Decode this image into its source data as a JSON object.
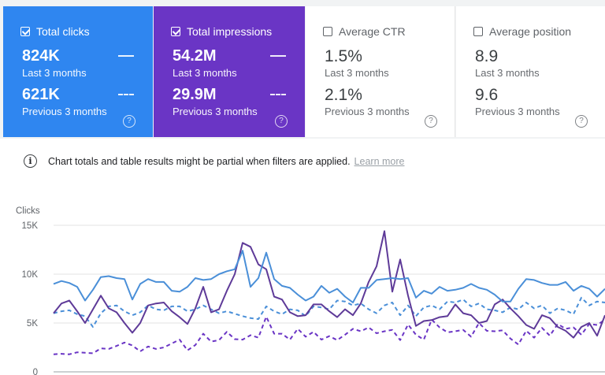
{
  "cards": [
    {
      "label": "Total clicks",
      "checked": true,
      "value": "824K",
      "period": "Last 3 months",
      "prev_value": "621K",
      "prev_period": "Previous 3 months"
    },
    {
      "label": "Total impressions",
      "checked": true,
      "value": "54.2M",
      "period": "Last 3 months",
      "prev_value": "29.9M",
      "prev_period": "Previous 3 months"
    },
    {
      "label": "Average CTR",
      "checked": false,
      "value": "1.5%",
      "period": "Last 3 months",
      "prev_value": "2.1%",
      "prev_period": "Previous 3 months"
    },
    {
      "label": "Average position",
      "checked": false,
      "value": "8.9",
      "period": "Last 3 months",
      "prev_value": "9.6",
      "prev_period": "Previous 3 months"
    }
  ],
  "help_glyph": "?",
  "notice": {
    "icon": "i",
    "text": "Chart totals and table results might be partial when filters are applied.",
    "link": "Learn more"
  },
  "colors": {
    "clicks": "#2f86f0",
    "impressions": "#6a35c5",
    "clicks_line": "#4a8fd8",
    "impressions_line": "#5e3a98"
  },
  "chart_data": {
    "type": "line",
    "ylabel": "Clicks",
    "ylim": [
      0,
      15000
    ],
    "yticks": [
      {
        "v": 0,
        "label": "0"
      },
      {
        "v": 5000,
        "label": "5K"
      },
      {
        "v": 10000,
        "label": "10K"
      },
      {
        "v": 15000,
        "label": "15K"
      }
    ],
    "series": [
      {
        "key": "impressions_prev",
        "style": "dashed",
        "color": "#6a35c5",
        "values": [
          1800,
          1850,
          1800,
          2000,
          1950,
          1900,
          2400,
          2350,
          2650,
          3000,
          2700,
          2100,
          2600,
          2350,
          2500,
          2900,
          3300,
          2200,
          2750,
          3900,
          3100,
          3250,
          4100,
          3350,
          3300,
          3750,
          3500,
          5650,
          3900,
          3900,
          3300,
          4400,
          3600,
          4100,
          3300,
          3650,
          3250,
          3800,
          4400,
          4150,
          4550,
          3950,
          4150,
          4300,
          3250,
          4850,
          3800,
          3300,
          5350,
          4550,
          4050,
          4150,
          4300,
          3600,
          5000,
          4200,
          4150,
          4250,
          3400,
          2800,
          4200,
          3500,
          4500,
          3700,
          4900,
          4400,
          4550,
          3800,
          4900,
          4800,
          5350
        ]
      },
      {
        "key": "clicks_prev",
        "style": "dashed",
        "color": "#4a8fd8",
        "values": [
          6000,
          6200,
          6300,
          5900,
          5700,
          4600,
          6000,
          6700,
          6800,
          6200,
          5800,
          6100,
          6800,
          6400,
          6300,
          6700,
          6700,
          6200,
          6400,
          6800,
          6400,
          6000,
          6200,
          5950,
          5700,
          5500,
          5400,
          6700,
          6200,
          5900,
          6400,
          6300,
          5700,
          6700,
          6600,
          6400,
          7300,
          7200,
          6800,
          7000,
          6400,
          6000,
          6800,
          7100,
          5800,
          6800,
          5700,
          6600,
          6800,
          6400,
          7200,
          7100,
          7400,
          6700,
          7000,
          6400,
          6300,
          6100,
          6600,
          6400,
          7100,
          6500,
          6800,
          6000,
          6500,
          6300,
          5900,
          7600,
          6800,
          7200,
          7100
        ]
      },
      {
        "key": "impressions",
        "style": "solid",
        "color": "#5e3a98",
        "values": [
          6000,
          7000,
          7300,
          6200,
          5000,
          6400,
          7800,
          6500,
          6100,
          5000,
          4000,
          5000,
          6800,
          7000,
          7100,
          6200,
          5600,
          4900,
          6500,
          8700,
          6100,
          6400,
          8300,
          10000,
          13200,
          12800,
          11000,
          10500,
          7700,
          7400,
          6100,
          5700,
          5800,
          6900,
          6900,
          6200,
          5600,
          6400,
          5800,
          7000,
          9200,
          10800,
          14400,
          8200,
          11500,
          7800,
          4700,
          5200,
          5300,
          5600,
          5700,
          6900,
          6000,
          5800,
          5000,
          5200,
          6900,
          7400,
          6500,
          5700,
          4800,
          4400,
          5800,
          5500,
          4600,
          4200,
          3500,
          4600,
          5000,
          3700,
          5800
        ]
      },
      {
        "key": "clicks",
        "style": "solid",
        "color": "#4a8fd8",
        "values": [
          9000,
          9300,
          9100,
          8700,
          7300,
          8400,
          9700,
          9800,
          9600,
          9500,
          7400,
          9000,
          9500,
          9200,
          9200,
          8300,
          8200,
          8700,
          9600,
          9400,
          9500,
          10000,
          10300,
          10500,
          12400,
          8700,
          9600,
          12200,
          9500,
          8800,
          8600,
          7900,
          7300,
          7700,
          8800,
          8100,
          8500,
          7700,
          7100,
          8600,
          8600,
          9400,
          9500,
          9600,
          9500,
          9600,
          7600,
          8300,
          8000,
          8700,
          8300,
          8400,
          8600,
          9000,
          8600,
          8400,
          7900,
          7200,
          7200,
          8500,
          9500,
          9400,
          9100,
          8900,
          8900,
          9200,
          8300,
          8800,
          8500,
          7700,
          8500
        ]
      }
    ]
  }
}
